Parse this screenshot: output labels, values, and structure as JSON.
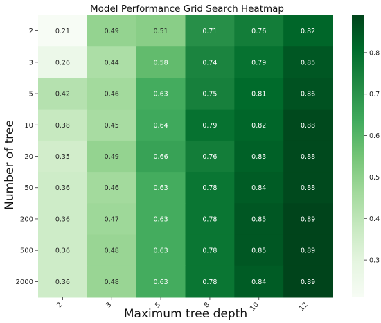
{
  "chart_data": {
    "type": "heatmap",
    "title": "Model Performance Grid Search Heatmap",
    "xlabel": "Maximum tree depth",
    "ylabel": "Number of tree",
    "x_categories": [
      "2",
      "3",
      "5",
      "8",
      "10",
      "12"
    ],
    "y_categories": [
      "2",
      "3",
      "5",
      "10",
      "20",
      "50",
      "200",
      "500",
      "2000"
    ],
    "values": [
      [
        0.21,
        0.49,
        0.51,
        0.71,
        0.76,
        0.82
      ],
      [
        0.26,
        0.44,
        0.58,
        0.74,
        0.79,
        0.85
      ],
      [
        0.42,
        0.46,
        0.63,
        0.75,
        0.81,
        0.86
      ],
      [
        0.38,
        0.45,
        0.64,
        0.79,
        0.82,
        0.88
      ],
      [
        0.35,
        0.49,
        0.66,
        0.76,
        0.83,
        0.88
      ],
      [
        0.36,
        0.46,
        0.63,
        0.78,
        0.84,
        0.88
      ],
      [
        0.36,
        0.47,
        0.63,
        0.78,
        0.85,
        0.89
      ],
      [
        0.36,
        0.48,
        0.63,
        0.78,
        0.85,
        0.89
      ],
      [
        0.36,
        0.48,
        0.63,
        0.78,
        0.84,
        0.89
      ]
    ],
    "colormap": "Greens",
    "value_range": [
      0.21,
      0.89
    ],
    "colorbar_ticks": [
      0.3,
      0.4,
      0.5,
      0.6,
      0.7,
      0.8
    ],
    "colorbar_placement": "right",
    "annotated": true
  }
}
